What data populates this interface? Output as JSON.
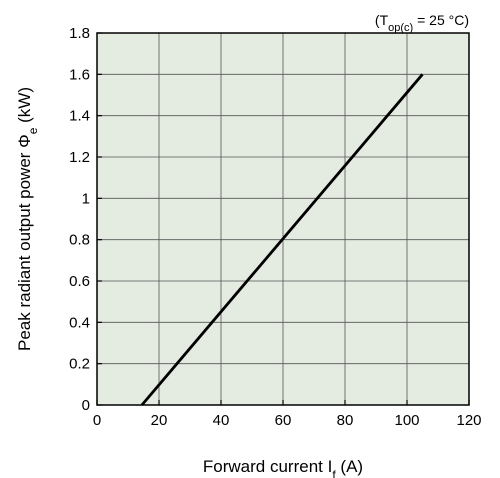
{
  "chart_data": {
    "type": "line",
    "condition": {
      "prefix": "(T",
      "subscript": "op(c)",
      "suffix": " = 25 °C)"
    },
    "xlabel": {
      "text": "Forward current I",
      "subscript": "f",
      "unit": " (A)"
    },
    "ylabel": {
      "text": "Peak radiant output power Φ",
      "subscript": "e",
      "unit": " (kW)"
    },
    "xlim": [
      0,
      120
    ],
    "ylim": [
      0,
      1.8
    ],
    "x_ticks": [
      {
        "value": 0,
        "label": "0"
      },
      {
        "value": 20,
        "label": "20"
      },
      {
        "value": 40,
        "label": "40"
      },
      {
        "value": 60,
        "label": "60"
      },
      {
        "value": 80,
        "label": "80"
      },
      {
        "value": 100,
        "label": "100"
      },
      {
        "value": 120,
        "label": "120"
      }
    ],
    "y_ticks": [
      {
        "value": 0,
        "label": "0"
      },
      {
        "value": 0.2,
        "label": "0.2"
      },
      {
        "value": 0.4,
        "label": "0.4"
      },
      {
        "value": 0.6,
        "label": "0.6"
      },
      {
        "value": 0.8,
        "label": "0.8"
      },
      {
        "value": 1.0,
        "label": "1"
      },
      {
        "value": 1.2,
        "label": "1.2"
      },
      {
        "value": 1.4,
        "label": "1.4"
      },
      {
        "value": 1.6,
        "label": "1.6"
      },
      {
        "value": 1.8,
        "label": "1.8"
      }
    ],
    "grid": true,
    "series": [
      {
        "x": [
          14.5,
          105
        ],
        "y": [
          0,
          1.6
        ]
      }
    ],
    "colors": {
      "plot_background": "#e4ebe0",
      "grid": "#555555",
      "line": "#000000"
    }
  }
}
